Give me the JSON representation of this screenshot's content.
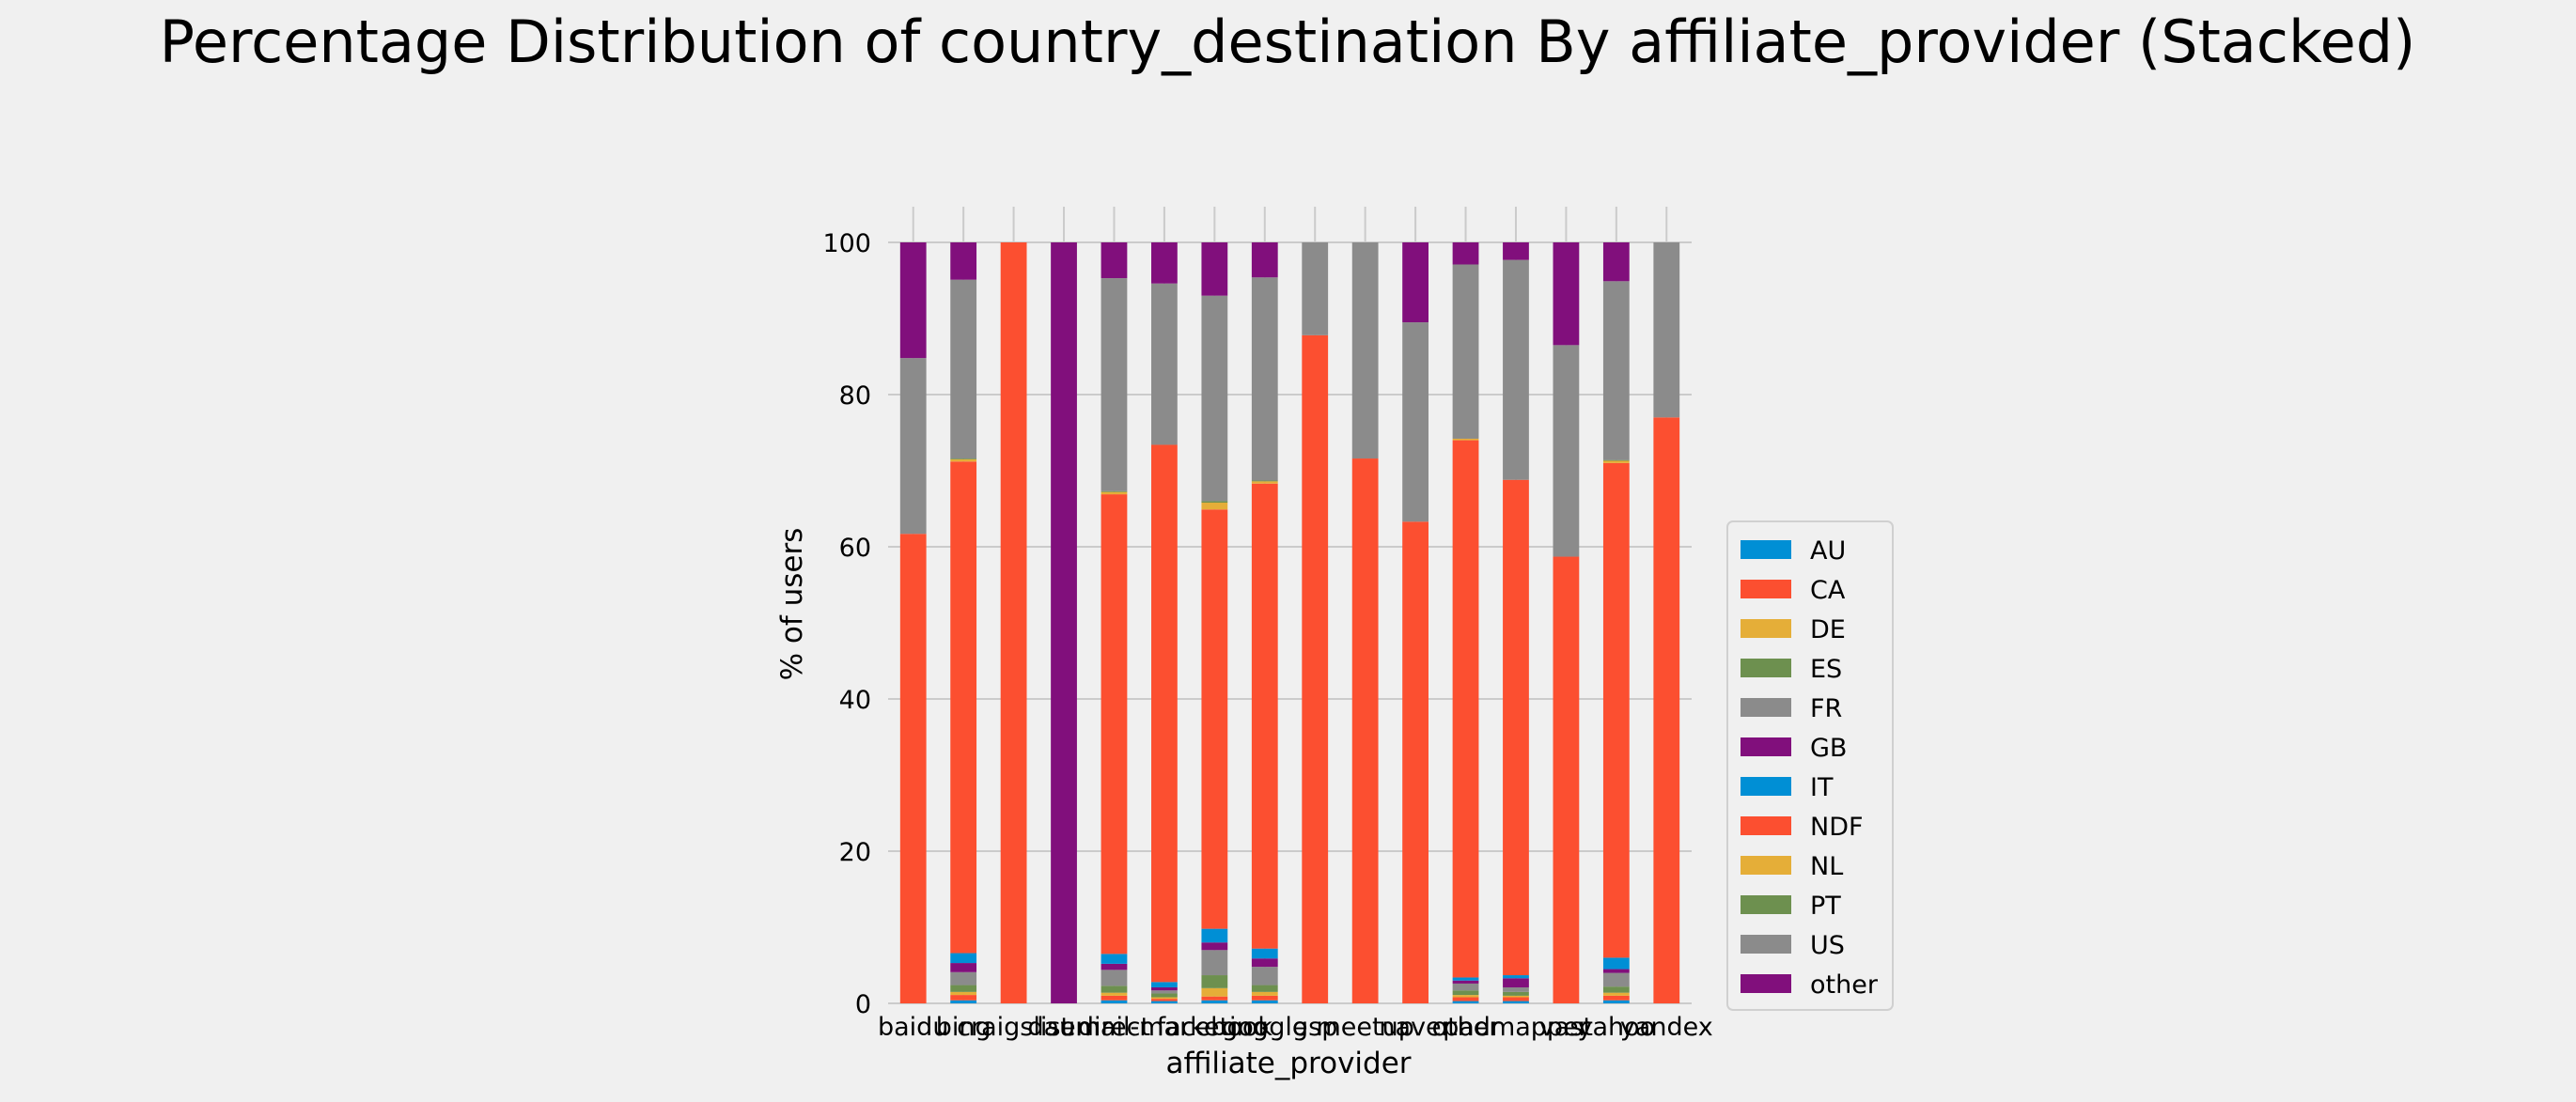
{
  "colors": {
    "background": "#f0f0f0",
    "grid": "#cbcbcb",
    "AU": "#008fd5",
    "CA": "#fc4f30",
    "DE": "#e5ae38",
    "ES": "#6d904f",
    "FR": "#8b8b8b",
    "GB": "#810f7c",
    "IT": "#008fd5",
    "NDF": "#fc4f30",
    "NL": "#e5ae38",
    "PT": "#6d904f",
    "US": "#8b8b8b",
    "other": "#810f7c"
  },
  "chart_data": {
    "type": "bar",
    "stacked": true,
    "title": "Percentage Distribution of country_destination By affiliate_provider (Stacked)",
    "xlabel": "affiliate_provider",
    "ylabel": "% of users",
    "ylim": [
      0,
      105
    ],
    "yticks": [
      0,
      20,
      40,
      60,
      80,
      100
    ],
    "grid": true,
    "legend_position": "right-bottom",
    "categories": [
      "baidu",
      "bing",
      "craigslist",
      "daum",
      "direct",
      "email-marketing",
      "facebook",
      "google",
      "gsp",
      "meetup",
      "naver",
      "other",
      "padmapper",
      "vast",
      "yahoo",
      "yandex"
    ],
    "series": [
      {
        "name": "AU",
        "values": [
          0,
          0.4,
          0,
          0,
          0.4,
          0.3,
          0.4,
          0.4,
          0,
          0,
          0,
          0.3,
          0.3,
          0,
          0.4,
          0
        ]
      },
      {
        "name": "CA",
        "values": [
          0,
          0.7,
          0,
          0,
          0.6,
          0.3,
          0.5,
          0.6,
          0,
          0,
          0,
          0.5,
          0.5,
          0,
          0.6,
          0
        ]
      },
      {
        "name": "DE",
        "values": [
          0,
          0.4,
          0,
          0,
          0.4,
          0.2,
          1.1,
          0.5,
          0,
          0,
          0,
          0.3,
          0.2,
          0,
          0.4,
          0
        ]
      },
      {
        "name": "ES",
        "values": [
          0,
          0.9,
          0,
          0,
          0.9,
          0.5,
          1.7,
          0.9,
          0,
          0,
          0,
          0.6,
          0.5,
          0,
          0.8,
          0
        ]
      },
      {
        "name": "FR",
        "values": [
          0,
          1.7,
          0,
          0,
          2.1,
          0.4,
          3.3,
          2.4,
          0,
          0,
          0,
          0.9,
          0.6,
          0,
          1.8,
          0
        ]
      },
      {
        "name": "GB",
        "values": [
          0,
          1.2,
          0,
          0,
          0.8,
          0.4,
          1.0,
          1.1,
          0,
          0,
          0,
          0.4,
          1.2,
          0,
          0.5,
          0
        ]
      },
      {
        "name": "IT",
        "values": [
          0,
          1.3,
          0,
          0,
          1.3,
          0.7,
          1.8,
          1.3,
          0,
          0,
          0,
          0.4,
          0.4,
          0,
          1.5,
          0
        ]
      },
      {
        "name": "NDF",
        "values": [
          61.7,
          64.6,
          100,
          0,
          60.4,
          70.6,
          55.1,
          61.1,
          87.8,
          71.6,
          63.3,
          70.6,
          65.1,
          58.7,
          65.0,
          77.0
        ]
      },
      {
        "name": "NL",
        "values": [
          0,
          0.3,
          0,
          0,
          0.3,
          0,
          0.9,
          0.3,
          0,
          0,
          0,
          0.2,
          0,
          0,
          0.3,
          0
        ]
      },
      {
        "name": "PT",
        "values": [
          0,
          0.1,
          0,
          0,
          0.1,
          0,
          0.2,
          0.1,
          0,
          0,
          0,
          0,
          0,
          0,
          0.1,
          0
        ]
      },
      {
        "name": "US",
        "values": [
          23.1,
          23.5,
          0,
          0,
          28.0,
          21.2,
          27.0,
          26.7,
          12.2,
          28.4,
          26.2,
          22.9,
          28.9,
          27.8,
          23.5,
          23.0
        ]
      },
      {
        "name": "other",
        "values": [
          15.2,
          4.9,
          0,
          100,
          4.7,
          5.4,
          7.0,
          4.6,
          0,
          0,
          10.5,
          2.9,
          2.3,
          13.5,
          5.1,
          0
        ]
      }
    ]
  }
}
